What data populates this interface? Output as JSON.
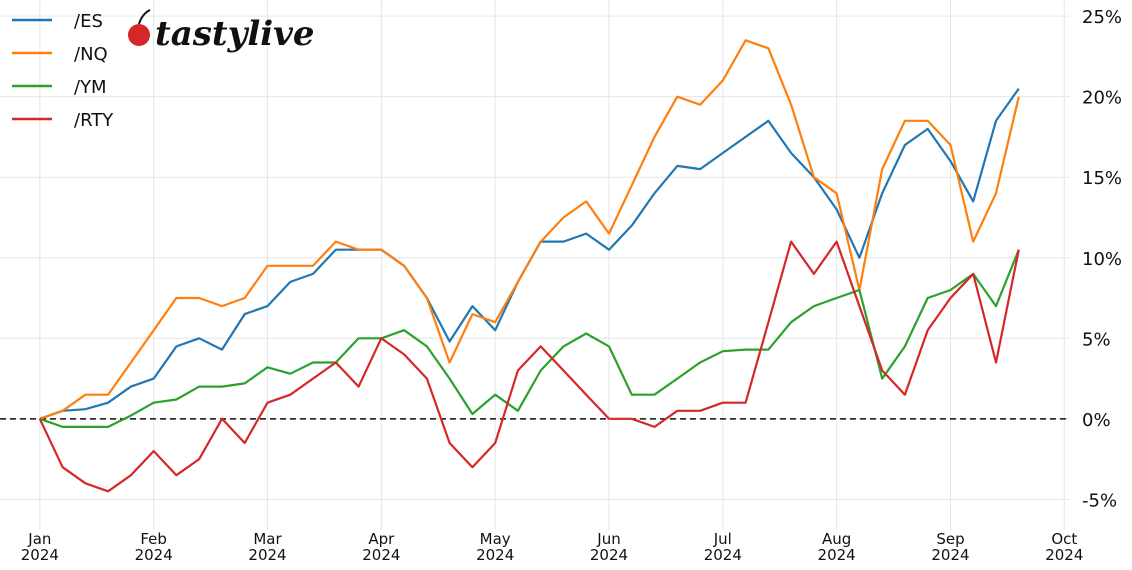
{
  "chart_data": {
    "type": "line",
    "logo": "tastylive",
    "x": [
      0,
      0.2,
      0.4,
      0.6,
      0.8,
      1,
      1.2,
      1.4,
      1.6,
      1.8,
      2,
      2.2,
      2.4,
      2.6,
      2.8,
      3,
      3.2,
      3.4,
      3.6,
      3.8,
      4,
      4.2,
      4.4,
      4.6,
      4.8,
      5,
      5.2,
      5.4,
      5.6,
      5.8,
      6,
      6.2,
      6.4,
      6.6,
      6.8,
      7,
      7.2,
      7.4,
      7.6,
      7.8,
      8,
      8.2,
      8.4,
      8.6
    ],
    "series": [
      {
        "name": "/ES",
        "color": "#1f77b4",
        "values": [
          0,
          0.5,
          0.6,
          1,
          2,
          2.5,
          4.5,
          5,
          4.3,
          6.5,
          7,
          8.5,
          9,
          10.5,
          10.5,
          10.5,
          9.5,
          7.5,
          4.8,
          7,
          5.5,
          8.5,
          11,
          11,
          11.5,
          10.5,
          12,
          14,
          15.7,
          15.5,
          16.5,
          17.5,
          18.5,
          16.5,
          15,
          13,
          10,
          14,
          17,
          18,
          16,
          13.5,
          18.5,
          20.5
        ]
      },
      {
        "name": "/NQ",
        "color": "#ff7f0e",
        "values": [
          0,
          0.5,
          1.5,
          1.5,
          3.5,
          5.5,
          7.5,
          7.5,
          7,
          7.5,
          9.5,
          9.5,
          9.5,
          11,
          10.5,
          10.5,
          9.5,
          7.5,
          3.5,
          6.5,
          6,
          8.5,
          11,
          12.5,
          13.5,
          11.5,
          14.5,
          17.5,
          20,
          19.5,
          21,
          23.5,
          23,
          19.5,
          15,
          14,
          8,
          15.5,
          18.5,
          18.5,
          17,
          11,
          14,
          20
        ]
      },
      {
        "name": "/YM",
        "color": "#2ca02c",
        "values": [
          0,
          -0.5,
          -0.5,
          -0.5,
          0.2,
          1,
          1.2,
          2,
          2,
          2.2,
          3.2,
          2.8,
          3.5,
          3.5,
          5,
          5,
          5.5,
          4.5,
          2.5,
          0.3,
          1.5,
          0.5,
          3,
          4.5,
          5.3,
          4.5,
          1.5,
          1.5,
          2.5,
          3.5,
          4.2,
          4.3,
          4.3,
          6,
          7,
          7.5,
          8,
          2.5,
          4.5,
          7.5,
          8,
          9,
          7,
          10.5
        ]
      },
      {
        "name": "/RTY",
        "color": "#d62728",
        "values": [
          0,
          -3,
          -4,
          -4.5,
          -3.5,
          -2,
          -3.5,
          -2.5,
          0,
          -1.5,
          1,
          1.5,
          2.5,
          3.5,
          2,
          5,
          4,
          2.5,
          -1.5,
          -3,
          -1.5,
          3,
          4.5,
          3,
          1.5,
          0,
          0,
          -0.5,
          0.5,
          0.5,
          1,
          1,
          6,
          11,
          9,
          11,
          7,
          3,
          1.5,
          5.5,
          7.5,
          9,
          3.5,
          10.5
        ]
      }
    ],
    "xlim": [
      -0.35,
      9.05
    ],
    "xticks": [
      {
        "value": 0,
        "label": "Jan\n2024"
      },
      {
        "value": 1,
        "label": "Feb\n2024"
      },
      {
        "value": 2,
        "label": "Mar\n2024"
      },
      {
        "value": 3,
        "label": "Apr\n2024"
      },
      {
        "value": 4,
        "label": "May\n2024"
      },
      {
        "value": 5,
        "label": "Jun\n2024"
      },
      {
        "value": 6,
        "label": "Jul\n2024"
      },
      {
        "value": 7,
        "label": "Aug\n2024"
      },
      {
        "value": 8,
        "label": "Sep\n2024"
      },
      {
        "value": 9,
        "label": "Oct\n2024"
      }
    ],
    "ylim": [
      -6.9,
      26
    ],
    "yticks": [
      {
        "value": -5,
        "label": "-5%"
      },
      {
        "value": 0,
        "label": "0%"
      },
      {
        "value": 5,
        "label": "5%"
      },
      {
        "value": 10,
        "label": "10%"
      },
      {
        "value": 15,
        "label": "15%"
      },
      {
        "value": 20,
        "label": "20%"
      },
      {
        "value": 25,
        "label": "25%"
      }
    ],
    "hline": 0,
    "grid": true
  }
}
